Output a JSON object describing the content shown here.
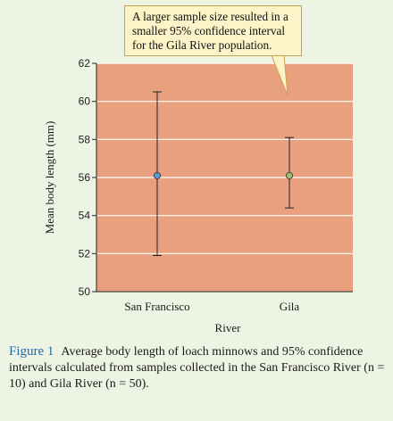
{
  "callout": {
    "line1": "A larger sample size resulted in a",
    "line2": "smaller 95% confidence interval",
    "line3": "for the Gila River population."
  },
  "caption": {
    "label": "Figure 1",
    "text": "Average body length of loach minnows and 95% confidence intervals calculated from samples collected in the San Francisco River (n = 10) and Gila River (n = 50)."
  },
  "colors": {
    "plot_bg": "#e8a07f",
    "page_bg": "#eef4e4",
    "san_francisco_point": "#5b9bd5",
    "gila_point": "#9bc06a",
    "callout_bg": "#fdf3c8",
    "caption_label": "#1f6aa8"
  },
  "chart_data": {
    "type": "scatter",
    "title": "",
    "xlabel": "River",
    "ylabel": "Mean body length (mm)",
    "categories": [
      "San Francisco",
      "Gila"
    ],
    "means": [
      56.1,
      56.1
    ],
    "ci_lower": [
      51.9,
      54.4
    ],
    "ci_upper": [
      60.5,
      58.1
    ],
    "ylim": [
      50,
      62
    ],
    "yticks": [
      50,
      52,
      54,
      56,
      58,
      60,
      62
    ],
    "grid": true
  }
}
